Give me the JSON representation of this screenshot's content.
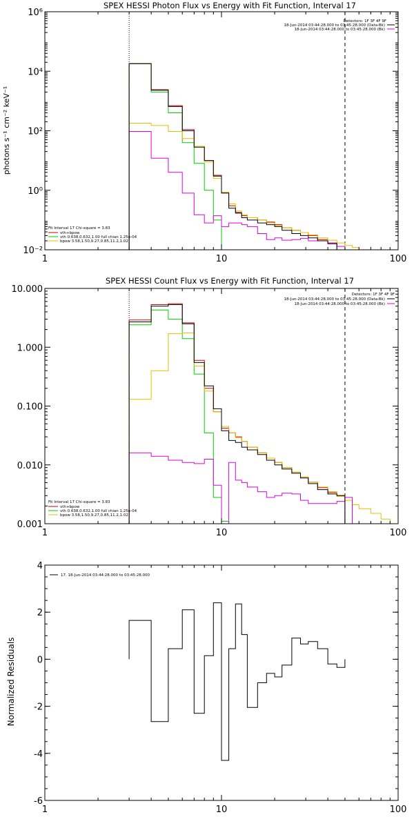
{
  "colors": {
    "data": "#000000",
    "total": "#cc0000",
    "vth": "#00cc00",
    "bpow": "#e0c000",
    "bkg": "#dd00dd"
  },
  "panels": {
    "photon": {
      "title": "SPEX HESSI Photon Flux vs Energy with Fit Function, Interval 17",
      "ylabel": "photons s⁻¹ cm⁻² keV⁻¹",
      "detectors": "Detectors: 1F 3F 4F 9F",
      "legend_top": [
        {
          "text": "18-Jun-2014 03:44:28.000 to 03:45:28.000 (Data-Bk)",
          "color": "#000000"
        },
        {
          "text": "18-Jun-2014 03:44:28.000 to 03:45:28.000 (Bk)",
          "color": "#dd00dd"
        }
      ],
      "legend_bottom": [
        {
          "text": "Fit Interval 17   Chi-square = 3.83",
          "color": "#000000"
        },
        {
          "text": "vth+bpow",
          "color": "#cc0000"
        },
        {
          "text": "vth 0.638,0.632,1.00  full chian 1.25e-04",
          "color": "#00cc00"
        },
        {
          "text": "bpow 3.58,1.50,9.27,0.85,11.2,1.02",
          "color": "#e0c000"
        }
      ]
    },
    "count": {
      "title": "SPEX HESSI Count Flux vs Energy with Fit Function, Interval 17",
      "detectors": "Detectors: 1F 3F 4F 9F",
      "legend_top": [
        {
          "text": "18-Jun-2014 03:44:28.000 to 03:45:28.000 (Data-Bk)",
          "color": "#000000"
        },
        {
          "text": "18-Jun-2014 03:44:28.000 to 03:45:28.000 (Bk)",
          "color": "#dd00dd"
        }
      ],
      "legend_bottom": [
        {
          "text": "Fit Interval 17   Chi-square = 3.83",
          "color": "#000000"
        },
        {
          "text": "vth+bpow",
          "color": "#cc0000"
        },
        {
          "text": "vth 0.638,0.632,1.00  full chian 1.25e-04",
          "color": "#00cc00"
        },
        {
          "text": "bpow 3.58,1.50,9.27,0.85,11.2,1.02",
          "color": "#e0c000"
        }
      ]
    },
    "resid": {
      "ylabel": "Normalized Residuals",
      "legend": "17. 18-Jun-2014 03:44:28.000 to 03:45:28.000"
    }
  },
  "chart_data": [
    {
      "type": "line",
      "title": "SPEX HESSI Photon Flux vs Energy with Fit Function, Interval 17",
      "xlabel": "",
      "ylabel": "photons s⁻¹ cm⁻² keV⁻¹",
      "xscale": "log",
      "yscale": "log",
      "xlim": [
        1,
        100
      ],
      "ylim": [
        0.01,
        1000000
      ],
      "xticks": [
        1,
        10,
        100
      ],
      "xtick_labels": [
        "1",
        "10",
        "100"
      ],
      "yticks": [
        0.01,
        1,
        100,
        10000,
        1000000
      ],
      "ytick_labels": [
        "10⁻²",
        "10⁰",
        "10²",
        "10⁴",
        "10⁶"
      ],
      "vlines": [
        {
          "x": 3,
          "style": "dotted"
        },
        {
          "x": 50,
          "style": "dashed"
        }
      ],
      "bin_edges": [
        3,
        4,
        5,
        6,
        7,
        8,
        9,
        10,
        11,
        12,
        13,
        14,
        16,
        18,
        20,
        22,
        25,
        28,
        31,
        35,
        40,
        45,
        50,
        55,
        60
      ],
      "series": [
        {
          "name": "vth+bpow",
          "color": "#cc0000",
          "values": [
            18000,
            2400,
            700,
            110,
            30,
            10,
            3.2,
            0.85,
            0.3,
            0.18,
            0.14,
            0.12,
            0.1,
            0.085,
            0.07,
            0.055,
            0.045,
            0.038,
            0.03,
            0.022,
            0.017,
            null,
            null,
            null
          ]
        },
        {
          "name": "vth",
          "color": "#00cc00",
          "values": [
            18000,
            2000,
            400,
            40,
            8,
            1,
            0.1,
            null,
            null,
            null,
            null,
            null,
            null,
            null,
            null,
            null,
            null,
            null,
            null,
            null,
            null,
            null,
            null,
            null
          ]
        },
        {
          "name": "bpow",
          "color": "#e0c000",
          "values": [
            180,
            150,
            95,
            55,
            30,
            9,
            2.5,
            0.85,
            0.35,
            0.2,
            0.15,
            0.12,
            0.1,
            0.08,
            0.065,
            0.055,
            0.045,
            0.038,
            0.032,
            0.025,
            0.021,
            0.017,
            0.014,
            0.012
          ]
        },
        {
          "name": "Bk",
          "color": "#dd00dd",
          "values": [
            95,
            12,
            4,
            0.8,
            0.15,
            0.08,
            0.14,
            0.06,
            0.08,
            0.08,
            0.07,
            0.06,
            0.035,
            0.022,
            0.025,
            0.021,
            0.022,
            0.024,
            0.02,
            0.02,
            0.017,
            0.013,
            null,
            null
          ]
        },
        {
          "name": "Data-Bk",
          "color": "#000000",
          "values": [
            18000,
            2300,
            650,
            100,
            28,
            10,
            3,
            0.8,
            0.25,
            0.17,
            0.12,
            0.1,
            0.08,
            0.07,
            0.06,
            0.045,
            0.035,
            0.03,
            0.025,
            0.02,
            0.016,
            null,
            null,
            null
          ]
        }
      ]
    },
    {
      "type": "line",
      "title": "SPEX HESSI Count Flux vs Energy with Fit Function, Interval 17",
      "xlabel": "",
      "ylabel": "",
      "xscale": "log",
      "yscale": "log",
      "xlim": [
        1,
        100
      ],
      "ylim": [
        0.001,
        10
      ],
      "xticks": [
        1,
        10,
        100
      ],
      "xtick_labels": [
        "1",
        "10",
        "100"
      ],
      "yticks": [
        0.001,
        0.01,
        0.1,
        1,
        10
      ],
      "ytick_labels": [
        "0.001",
        "0.010",
        "0.100",
        "1.000",
        "10.000"
      ],
      "vlines": [
        {
          "x": 3,
          "style": "dotted"
        },
        {
          "x": 50,
          "style": "dashed"
        }
      ],
      "bin_edges": [
        3,
        4,
        5,
        6,
        7,
        8,
        9,
        10,
        11,
        12,
        13,
        14,
        16,
        18,
        20,
        22,
        25,
        28,
        31,
        35,
        40,
        45,
        50,
        55,
        60,
        70,
        80,
        90,
        100
      ],
      "series": [
        {
          "name": "vth+bpow",
          "color": "#cc0000",
          "values": [
            2.9,
            5.3,
            5.5,
            2.6,
            0.6,
            0.2,
            0.08,
            0.042,
            0.035,
            0.03,
            0.025,
            0.02,
            0.016,
            0.013,
            0.011,
            0.009,
            0.0075,
            0.0062,
            0.0051,
            0.0041,
            0.0034,
            0.003,
            null,
            null,
            null,
            null,
            null,
            null
          ]
        },
        {
          "name": "vth",
          "color": "#00cc00",
          "values": [
            2.4,
            4.3,
            3.0,
            1.4,
            0.35,
            0.035,
            0.0028,
            0.0011,
            null,
            null,
            null,
            null,
            null,
            null,
            null,
            null,
            null,
            null,
            null,
            null,
            null,
            null,
            null,
            null,
            null,
            null,
            null,
            null
          ]
        },
        {
          "name": "bpow",
          "color": "#e0c000",
          "values": [
            0.13,
            0.4,
            1.7,
            1.75,
            0.48,
            0.18,
            0.08,
            0.045,
            0.035,
            0.029,
            0.025,
            0.02,
            0.016,
            0.013,
            0.011,
            0.009,
            0.0075,
            0.0062,
            0.0051,
            0.0042,
            0.0035,
            0.0029,
            0.0025,
            0.0021,
            0.0018,
            0.0015,
            0.0012,
            0.001
          ]
        },
        {
          "name": "Bk",
          "color": "#dd00dd",
          "values": [
            0.016,
            0.014,
            0.012,
            0.011,
            0.0105,
            0.0125,
            0.0045,
            null,
            0.011,
            0.0055,
            0.005,
            0.0042,
            0.0035,
            0.0028,
            0.003,
            0.0033,
            0.0032,
            0.0025,
            0.0022,
            0.0022,
            0.0022,
            0.0024,
            0.0028,
            null,
            null,
            null,
            null,
            null
          ]
        },
        {
          "name": "Data-Bk",
          "color": "#000000",
          "values": [
            2.7,
            5.0,
            5.3,
            2.5,
            0.55,
            0.22,
            0.09,
            0.038,
            0.026,
            0.024,
            0.02,
            0.018,
            0.015,
            0.012,
            0.01,
            0.0085,
            0.0072,
            0.006,
            0.0048,
            0.0038,
            0.0032,
            0.003,
            null,
            null,
            null,
            null,
            null,
            null
          ]
        }
      ]
    },
    {
      "type": "line",
      "title": "",
      "xlabel": "",
      "ylabel": "Normalized Residuals",
      "xscale": "log",
      "yscale": "linear",
      "xlim": [
        1,
        100
      ],
      "ylim": [
        -6,
        4
      ],
      "xticks": [
        1,
        10,
        100
      ],
      "xtick_labels": [
        "1",
        "10",
        "100"
      ],
      "yticks": [
        -6,
        -4,
        -2,
        0,
        2,
        4
      ],
      "ytick_labels": [
        "-6",
        "-4",
        "-2",
        "0",
        "2",
        "4"
      ],
      "bin_edges": [
        3,
        4,
        5,
        6,
        7,
        8,
        9,
        10,
        11,
        12,
        13,
        14,
        16,
        18,
        20,
        22,
        25,
        28,
        31,
        35,
        40,
        45,
        50
      ],
      "series": [
        {
          "name": "17. 18-Jun-2014 03:44:28.000 to 03:45:28.000",
          "color": "#000000",
          "values": [
            1.65,
            -2.65,
            0.45,
            2.1,
            -2.3,
            0.15,
            2.4,
            -4.3,
            0.45,
            2.35,
            1.05,
            -2.05,
            -1.0,
            -0.6,
            -0.75,
            -0.25,
            0.9,
            0.65,
            0.75,
            0.45,
            -0.2,
            -0.35
          ]
        }
      ]
    }
  ]
}
